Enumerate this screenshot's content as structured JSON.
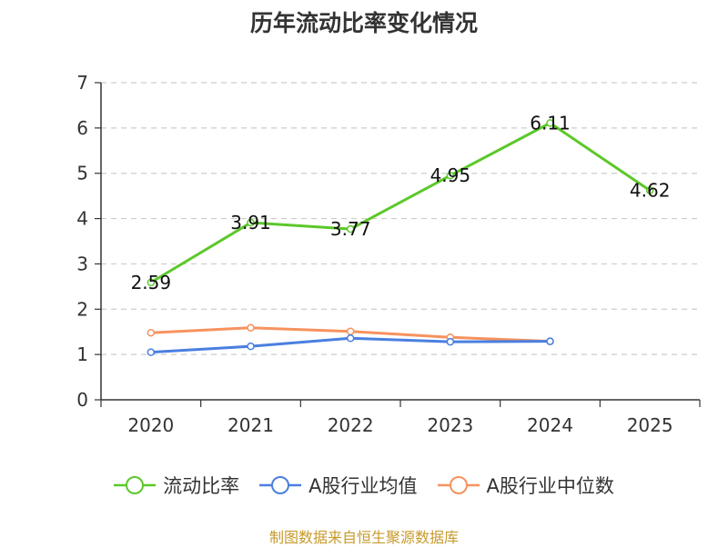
{
  "chart_data": {
    "type": "line",
    "title": "历年流动比率变化情况",
    "categories": [
      "2020",
      "2021",
      "2022",
      "2023",
      "2024",
      "2025"
    ],
    "ylim": [
      0,
      7
    ],
    "yticks": [
      "0",
      "1",
      "2",
      "3",
      "4",
      "5",
      "6",
      "7"
    ],
    "grid": true,
    "legend_position": "bottom",
    "series": [
      {
        "name": "流动比率",
        "color": "#5cc82a",
        "values": [
          2.59,
          3.91,
          3.77,
          4.95,
          6.11,
          4.62
        ],
        "labels": [
          "2.59",
          "3.91",
          "3.77",
          "4.95",
          "6.11",
          "4.62"
        ]
      },
      {
        "name": "A股行业均值",
        "color": "#4a7fe0",
        "values": [
          1.05,
          1.18,
          1.36,
          1.28,
          1.29,
          null
        ]
      },
      {
        "name": "A股行业中位数",
        "color": "#f7925e",
        "values": [
          1.48,
          1.59,
          1.51,
          1.38,
          1.29,
          null
        ]
      }
    ]
  },
  "footer": {
    "source": "制图数据来自恒生聚源数据库"
  }
}
